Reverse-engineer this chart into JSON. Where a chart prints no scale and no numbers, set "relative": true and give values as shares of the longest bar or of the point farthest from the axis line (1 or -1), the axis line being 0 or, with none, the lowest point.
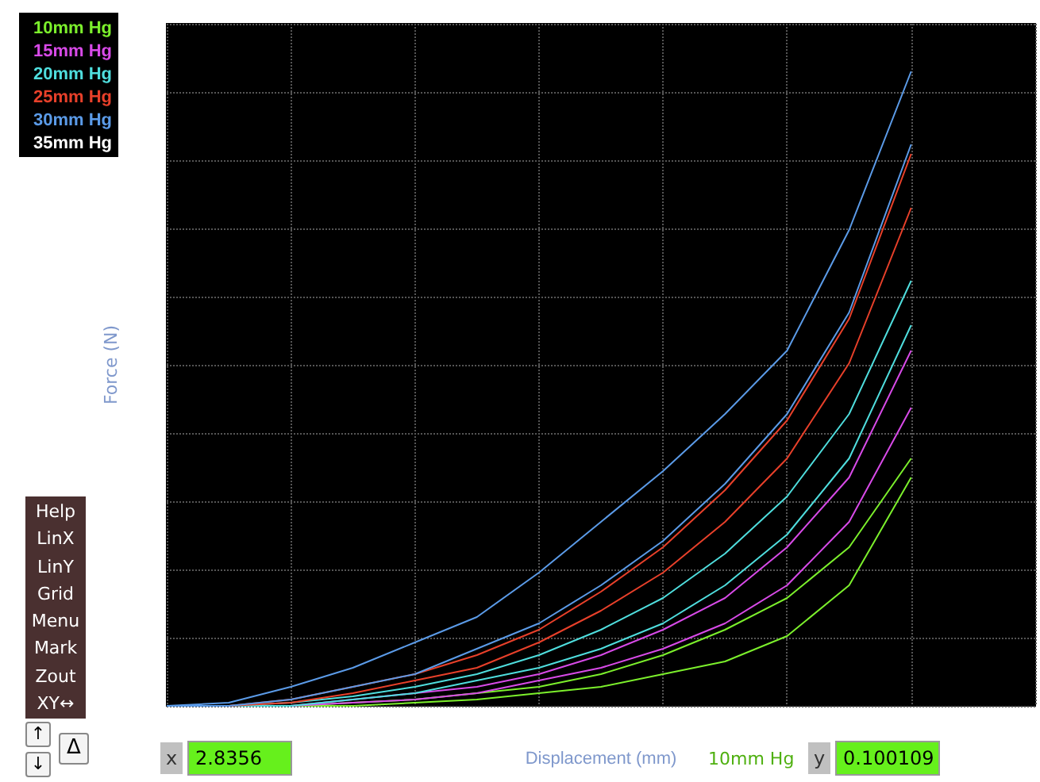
{
  "chart_data": {
    "type": "line",
    "relative": true,
    "xlabel": "Displacement (mm)",
    "ylabel": "Force (N)",
    "grid": true,
    "legend": "top left",
    "marker": "none",
    "line_style": "solid",
    "categories": [
      null,
      null,
      null,
      null,
      null,
      null,
      null,
      null,
      null,
      null,
      null,
      null,
      null,
      null,
      null
    ],
    "series": [
      {
        "name": "10mm Hg",
        "color": "#7cf02c",
        "values": [
          0,
          0,
          0,
          0.005,
          0.01,
          0.02,
          0.03,
          0.05,
          0.08,
          0.12,
          0.17,
          0.25,
          0.39,
          null,
          null
        ]
      },
      {
        "name": "15mm Hg",
        "color": "#d84ae8",
        "values": [
          0,
          0,
          0,
          0.01,
          0.02,
          0.03,
          0.05,
          0.08,
          0.12,
          0.17,
          0.25,
          0.36,
          0.56,
          null,
          null
        ]
      },
      {
        "name": "20mm Hg",
        "color": "#4fdede",
        "values": [
          0,
          0,
          0.005,
          0.015,
          0.03,
          0.05,
          0.08,
          0.12,
          0.17,
          0.24,
          0.33,
          0.46,
          0.67,
          null,
          null
        ]
      },
      {
        "name": "25mm Hg",
        "color": "#e8402a",
        "values": [
          0,
          0,
          0.01,
          0.03,
          0.05,
          0.08,
          0.12,
          0.18,
          0.25,
          0.34,
          0.45,
          0.61,
          0.87,
          null,
          null
        ]
      },
      {
        "name": "30mm Hg",
        "color": "#5b9be8",
        "values": [
          0,
          0.005,
          0.03,
          0.06,
          0.1,
          0.14,
          0.21,
          0.29,
          0.37,
          0.46,
          0.56,
          0.75,
          1,
          null,
          null
        ]
      },
      {
        "name": "35mm Hg",
        "color": "#ffffff",
        "values": [
          null,
          null,
          null,
          null,
          null,
          null,
          null,
          null,
          null,
          null,
          null,
          null,
          null,
          null,
          null
        ]
      },
      {
        "color": "#7cf02c",
        "values": [
          0,
          0,
          0,
          0,
          0.005,
          0.01,
          0.02,
          0.03,
          0.05,
          0.07,
          0.11,
          0.19,
          0.36,
          null,
          null
        ]
      },
      {
        "color": "#d84ae8",
        "values": [
          0,
          0,
          0,
          0.005,
          0.01,
          0.02,
          0.04,
          0.06,
          0.09,
          0.13,
          0.19,
          0.29,
          0.47,
          null,
          null
        ]
      },
      {
        "color": "#4fdede",
        "values": [
          0,
          0,
          0,
          0.01,
          0.02,
          0.04,
          0.06,
          0.09,
          0.13,
          0.19,
          0.27,
          0.39,
          0.6,
          null,
          null
        ]
      },
      {
        "color": "#e8402a",
        "values": [
          0,
          0,
          0.005,
          0.02,
          0.04,
          0.06,
          0.1,
          0.15,
          0.21,
          0.29,
          0.39,
          0.54,
          0.785,
          null,
          null
        ]
      },
      {
        "color": "#5b9be8",
        "values": [
          0,
          0,
          0.01,
          0.03,
          0.05,
          0.09,
          0.13,
          0.19,
          0.26,
          0.35,
          0.46,
          0.62,
          0.885,
          null,
          null
        ]
      }
    ],
    "annotations": [
      "Help",
      "LinX",
      "LinY",
      "Grid",
      "Menu",
      "Mark",
      "Zout",
      "XY↔",
      "↑",
      "↓",
      "Δ",
      "x",
      "2.8356",
      "10mm Hg",
      "y",
      "0.100109"
    ]
  }
}
